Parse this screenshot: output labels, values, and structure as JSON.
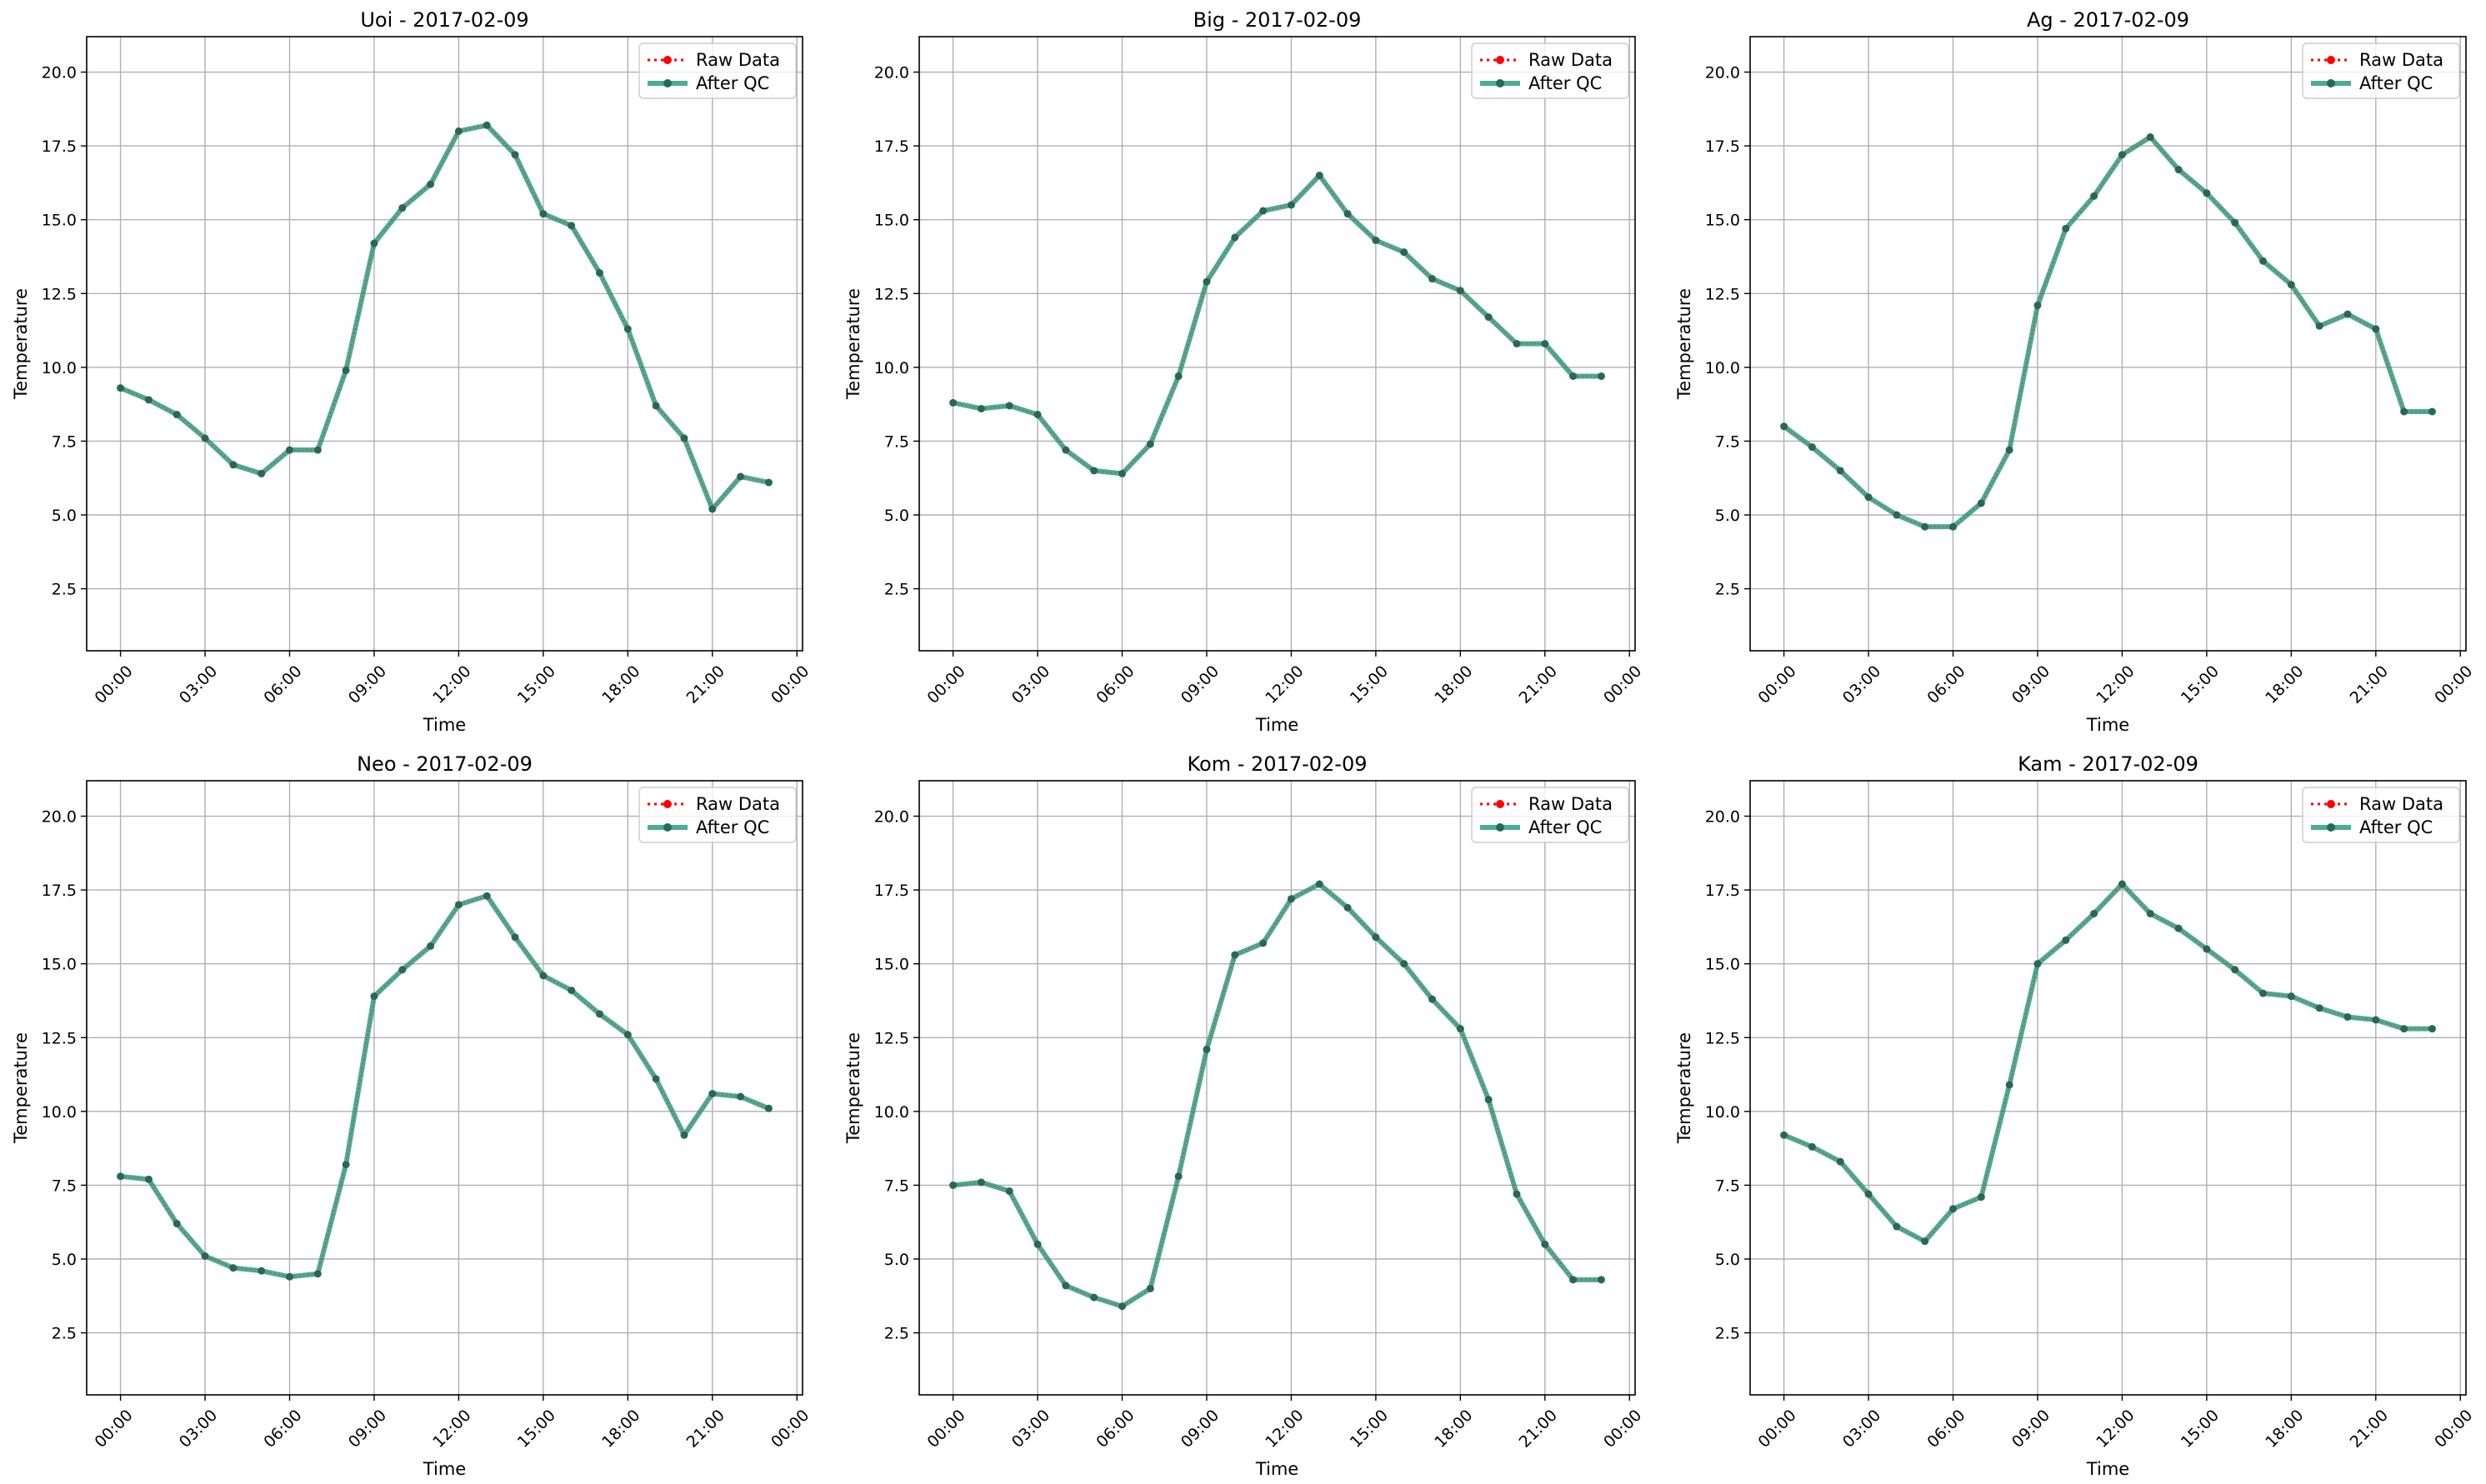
{
  "colors": {
    "raw": "#ff0000",
    "qc": "#2e9e80",
    "qc_marker": "#236b57",
    "grid": "#b0b0b0"
  },
  "legend": {
    "raw_label": "Raw Data",
    "qc_label": "After QC",
    "placement": "upper right"
  },
  "chart_data": [
    {
      "type": "line",
      "title": "Uoi - 2017-02-09",
      "xlabel": "Time",
      "ylabel": "Temperature",
      "ylim": [
        0.4,
        21.2
      ],
      "yticks": [
        2.5,
        5.0,
        7.5,
        10.0,
        12.5,
        15.0,
        17.5,
        20.0
      ],
      "xlim": [
        -1.2,
        24.2
      ],
      "xticks": [
        "00:00",
        "03:00",
        "06:00",
        "09:00",
        "12:00",
        "15:00",
        "18:00",
        "21:00",
        "00:00"
      ],
      "grid": true,
      "x_hours": [
        0,
        1,
        2,
        3,
        4,
        5,
        6,
        7,
        8,
        9,
        10,
        11,
        12,
        13,
        14,
        15,
        16,
        17,
        18,
        19,
        20,
        21,
        22,
        23
      ],
      "series": [
        {
          "name": "Raw Data",
          "values": [
            9.3,
            8.9,
            8.4,
            7.6,
            6.7,
            6.4,
            7.2,
            7.2,
            9.9,
            14.2,
            15.4,
            16.2,
            18.0,
            18.2,
            17.2,
            15.2,
            14.8,
            13.2,
            11.3,
            8.7,
            7.6,
            5.2,
            6.3,
            6.1
          ]
        },
        {
          "name": "After QC",
          "values": [
            9.3,
            8.9,
            8.4,
            7.6,
            6.7,
            6.4,
            7.2,
            7.2,
            9.9,
            14.2,
            15.4,
            16.2,
            18.0,
            18.2,
            17.2,
            15.2,
            14.8,
            13.2,
            11.3,
            8.7,
            7.6,
            5.2,
            6.3,
            6.1
          ]
        }
      ]
    },
    {
      "type": "line",
      "title": "Big - 2017-02-09",
      "xlabel": "Time",
      "ylabel": "Temperature",
      "ylim": [
        0.4,
        21.2
      ],
      "yticks": [
        2.5,
        5.0,
        7.5,
        10.0,
        12.5,
        15.0,
        17.5,
        20.0
      ],
      "xlim": [
        -1.2,
        24.2
      ],
      "xticks": [
        "00:00",
        "03:00",
        "06:00",
        "09:00",
        "12:00",
        "15:00",
        "18:00",
        "21:00",
        "00:00"
      ],
      "grid": true,
      "x_hours": [
        0,
        1,
        2,
        3,
        4,
        5,
        6,
        7,
        8,
        9,
        10,
        11,
        12,
        13,
        14,
        15,
        16,
        17,
        18,
        19,
        20,
        21,
        22,
        23
      ],
      "series": [
        {
          "name": "Raw Data",
          "values": [
            8.8,
            8.6,
            8.7,
            8.4,
            7.2,
            6.5,
            6.4,
            7.4,
            9.7,
            12.9,
            14.4,
            15.3,
            15.5,
            16.5,
            15.2,
            14.3,
            13.9,
            13.0,
            12.6,
            11.7,
            10.8,
            10.8,
            9.7,
            9.7
          ]
        },
        {
          "name": "After QC",
          "values": [
            8.8,
            8.6,
            8.7,
            8.4,
            7.2,
            6.5,
            6.4,
            7.4,
            9.7,
            12.9,
            14.4,
            15.3,
            15.5,
            16.5,
            15.2,
            14.3,
            13.9,
            13.0,
            12.6,
            11.7,
            10.8,
            10.8,
            9.7,
            9.7
          ]
        }
      ]
    },
    {
      "type": "line",
      "title": "Ag - 2017-02-09",
      "xlabel": "Time",
      "ylabel": "Temperature",
      "ylim": [
        0.4,
        21.2
      ],
      "yticks": [
        2.5,
        5.0,
        7.5,
        10.0,
        12.5,
        15.0,
        17.5,
        20.0
      ],
      "xlim": [
        -1.2,
        24.2
      ],
      "xticks": [
        "00:00",
        "03:00",
        "06:00",
        "09:00",
        "12:00",
        "15:00",
        "18:00",
        "21:00",
        "00:00"
      ],
      "grid": true,
      "x_hours": [
        0,
        1,
        2,
        3,
        4,
        5,
        6,
        7,
        8,
        9,
        10,
        11,
        12,
        13,
        14,
        15,
        16,
        17,
        18,
        19,
        20,
        21,
        22,
        23
      ],
      "series": [
        {
          "name": "Raw Data",
          "values": [
            8.0,
            7.3,
            6.5,
            5.6,
            5.0,
            4.6,
            4.6,
            5.4,
            7.2,
            12.1,
            14.7,
            15.8,
            17.2,
            17.8,
            16.7,
            15.9,
            14.9,
            13.6,
            12.8,
            11.4,
            11.8,
            11.3,
            8.5,
            8.5
          ]
        },
        {
          "name": "After QC",
          "values": [
            8.0,
            7.3,
            6.5,
            5.6,
            5.0,
            4.6,
            4.6,
            5.4,
            7.2,
            12.1,
            14.7,
            15.8,
            17.2,
            17.8,
            16.7,
            15.9,
            14.9,
            13.6,
            12.8,
            11.4,
            11.8,
            11.3,
            8.5,
            8.5
          ]
        }
      ]
    },
    {
      "type": "line",
      "title": "Neo - 2017-02-09",
      "xlabel": "Time",
      "ylabel": "Temperature",
      "ylim": [
        0.4,
        21.2
      ],
      "yticks": [
        2.5,
        5.0,
        7.5,
        10.0,
        12.5,
        15.0,
        17.5,
        20.0
      ],
      "xlim": [
        -1.2,
        24.2
      ],
      "xticks": [
        "00:00",
        "03:00",
        "06:00",
        "09:00",
        "12:00",
        "15:00",
        "18:00",
        "21:00",
        "00:00"
      ],
      "grid": true,
      "x_hours": [
        0,
        1,
        2,
        3,
        4,
        5,
        6,
        7,
        8,
        9,
        10,
        11,
        12,
        13,
        14,
        15,
        16,
        17,
        18,
        19,
        20,
        21,
        22,
        23
      ],
      "series": [
        {
          "name": "Raw Data",
          "values": [
            7.8,
            7.7,
            6.2,
            5.1,
            4.7,
            4.6,
            4.4,
            4.5,
            8.2,
            13.9,
            14.8,
            15.6,
            17.0,
            17.3,
            15.9,
            14.6,
            14.1,
            13.3,
            12.6,
            11.1,
            9.2,
            10.6,
            10.5,
            10.1
          ]
        },
        {
          "name": "After QC",
          "values": [
            7.8,
            7.7,
            6.2,
            5.1,
            4.7,
            4.6,
            4.4,
            4.5,
            8.2,
            13.9,
            14.8,
            15.6,
            17.0,
            17.3,
            15.9,
            14.6,
            14.1,
            13.3,
            12.6,
            11.1,
            9.2,
            10.6,
            10.5,
            10.1
          ]
        }
      ]
    },
    {
      "type": "line",
      "title": "Kom - 2017-02-09",
      "xlabel": "Time",
      "ylabel": "Temperature",
      "ylim": [
        0.4,
        21.2
      ],
      "yticks": [
        2.5,
        5.0,
        7.5,
        10.0,
        12.5,
        15.0,
        17.5,
        20.0
      ],
      "xlim": [
        -1.2,
        24.2
      ],
      "xticks": [
        "00:00",
        "03:00",
        "06:00",
        "09:00",
        "12:00",
        "15:00",
        "18:00",
        "21:00",
        "00:00"
      ],
      "grid": true,
      "x_hours": [
        0,
        1,
        2,
        3,
        4,
        5,
        6,
        7,
        8,
        9,
        10,
        11,
        12,
        13,
        14,
        15,
        16,
        17,
        18,
        19,
        20,
        21,
        22,
        23
      ],
      "series": [
        {
          "name": "Raw Data",
          "values": [
            7.5,
            7.6,
            7.3,
            5.5,
            4.1,
            3.7,
            3.4,
            4.0,
            7.8,
            12.1,
            15.3,
            15.7,
            17.2,
            17.7,
            16.9,
            15.9,
            15.0,
            13.8,
            12.8,
            10.4,
            7.2,
            5.5,
            4.3,
            4.3
          ]
        },
        {
          "name": "After QC",
          "values": [
            7.5,
            7.6,
            7.3,
            5.5,
            4.1,
            3.7,
            3.4,
            4.0,
            7.8,
            12.1,
            15.3,
            15.7,
            17.2,
            17.7,
            16.9,
            15.9,
            15.0,
            13.8,
            12.8,
            10.4,
            7.2,
            5.5,
            4.3,
            4.3
          ]
        }
      ]
    },
    {
      "type": "line",
      "title": "Kam - 2017-02-09",
      "xlabel": "Time",
      "ylabel": "Temperature",
      "ylim": [
        0.4,
        21.2
      ],
      "yticks": [
        2.5,
        5.0,
        7.5,
        10.0,
        12.5,
        15.0,
        17.5,
        20.0
      ],
      "xlim": [
        -1.2,
        24.2
      ],
      "xticks": [
        "00:00",
        "03:00",
        "06:00",
        "09:00",
        "12:00",
        "15:00",
        "18:00",
        "21:00",
        "00:00"
      ],
      "grid": true,
      "x_hours": [
        0,
        1,
        2,
        3,
        4,
        5,
        6,
        7,
        8,
        9,
        10,
        11,
        12,
        13,
        14,
        15,
        16,
        17,
        18,
        19,
        20,
        21,
        22,
        23
      ],
      "series": [
        {
          "name": "Raw Data",
          "values": [
            9.2,
            8.8,
            8.3,
            7.2,
            6.1,
            5.6,
            6.7,
            7.1,
            10.9,
            15.0,
            15.8,
            16.7,
            17.7,
            16.7,
            16.2,
            15.5,
            14.8,
            14.0,
            13.9,
            13.5,
            13.2,
            13.1,
            12.8,
            12.8
          ]
        },
        {
          "name": "After QC",
          "values": [
            9.2,
            8.8,
            8.3,
            7.2,
            6.1,
            5.6,
            6.7,
            7.1,
            10.9,
            15.0,
            15.8,
            16.7,
            17.7,
            16.7,
            16.2,
            15.5,
            14.8,
            14.0,
            13.9,
            13.5,
            13.2,
            13.1,
            12.8,
            12.8
          ]
        }
      ]
    }
  ]
}
